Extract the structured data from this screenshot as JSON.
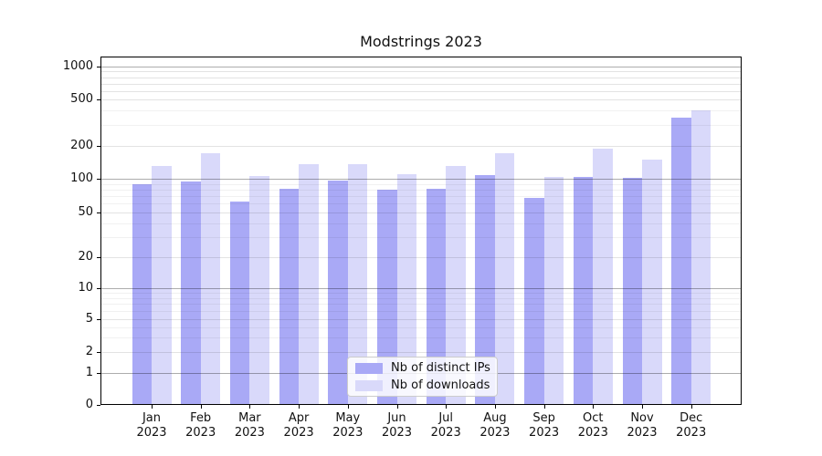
{
  "title": "Modstrings 2023",
  "chart_data": {
    "type": "bar",
    "title": "Modstrings 2023",
    "yscale": "symlog",
    "grid": true,
    "legend_position": "lower center",
    "categories": [
      "Jan",
      "Feb",
      "Mar",
      "Apr",
      "May",
      "Jun",
      "Jul",
      "Aug",
      "Sep",
      "Oct",
      "Nov",
      "Dec"
    ],
    "category_year": "2023",
    "series": [
      {
        "name": "Nb of distinct IPs",
        "color": "#a9a9f6",
        "values": [
          90,
          94,
          63,
          82,
          96,
          80,
          82,
          107,
          68,
          103,
          101,
          350
        ]
      },
      {
        "name": "Nb of downloads",
        "color": "#d9d9fa",
        "values": [
          130,
          172,
          105,
          136,
          136,
          111,
          131,
          170,
          104,
          190,
          149,
          400
        ]
      }
    ],
    "yticks": [
      "1000",
      "500",
      "200",
      "100",
      "50",
      "20",
      "10",
      "5",
      "2",
      "1",
      "0"
    ],
    "ylim": [
      0,
      1000
    ],
    "xlabel": "",
    "ylabel": ""
  },
  "colors": {
    "bar_distinct_ips": "#a9a9f6",
    "bar_downloads": "#d9d9fa",
    "grid_major": "rgba(0,0,0,0.32)",
    "grid_mid": "rgba(0,0,0,0.11)",
    "grid_minor": "rgba(0,0,0,0.055)",
    "spine": "#000000",
    "background": "#ffffff"
  }
}
